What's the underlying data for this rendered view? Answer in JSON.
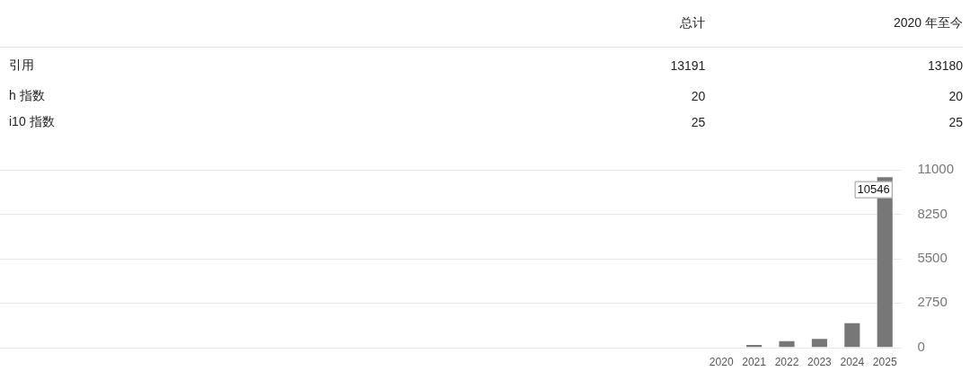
{
  "chart_data": [
    {
      "type": "other",
      "categories": [
        "总计",
        "2020 年至今"
      ],
      "y_categories": [
        "引用",
        "h 指数",
        "i10 指数"
      ],
      "cells": [
        [
          "13191",
          "13180"
        ],
        [
          "20",
          "20"
        ],
        [
          "25",
          "25"
        ]
      ]
    },
    {
      "type": "bar",
      "categories": [
        "2020",
        "2021",
        "2022",
        "2023",
        "2024",
        "2025"
      ],
      "values": [
        0,
        150,
        380,
        520,
        1500,
        10546
      ],
      "color": "#777777",
      "value_labels": [
        null,
        null,
        null,
        null,
        null,
        "10546"
      ],
      "ylim": [
        0,
        11000
      ],
      "yticks": [
        0,
        2750,
        5500,
        8250,
        11000
      ],
      "grid": "y"
    }
  ]
}
